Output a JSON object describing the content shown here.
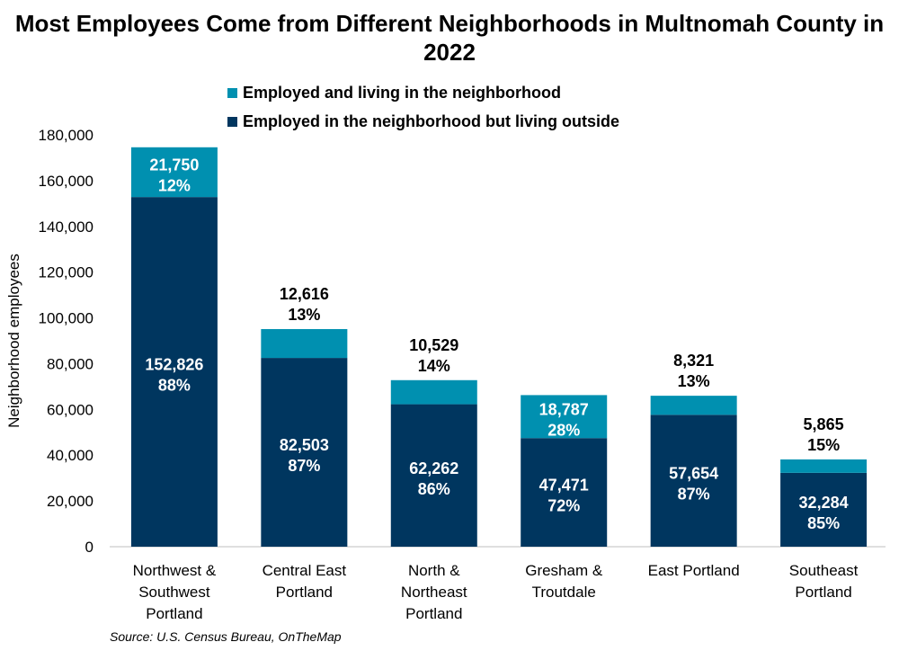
{
  "chart_data": {
    "type": "bar",
    "stacked": true,
    "title": "Most Employees Come from Different Neighborhoods in Multnomah County in 2022",
    "ylabel": "Neighborhood employees",
    "xlabel": "",
    "ylim": [
      0,
      180000
    ],
    "yticks": [
      0,
      20000,
      40000,
      60000,
      80000,
      100000,
      120000,
      140000,
      160000,
      180000
    ],
    "ytick_labels": [
      "0",
      "20,000",
      "40,000",
      "60,000",
      "80,000",
      "100,000",
      "120,000",
      "140,000",
      "160,000",
      "180,000"
    ],
    "grid": false,
    "legend_position": "top",
    "categories": [
      [
        "Northwest &",
        "Southwest",
        "Portland"
      ],
      [
        "Central East",
        "Portland"
      ],
      [
        "North &",
        "Northeast",
        "Portland"
      ],
      [
        "Gresham &",
        "Troutdale"
      ],
      [
        "East Portland"
      ],
      [
        "Southeast",
        "Portland"
      ]
    ],
    "series": [
      {
        "name": "Employed in the neighborhood but living outside",
        "color": "#00365f",
        "values": [
          152826,
          82503,
          62262,
          47471,
          57654,
          32284
        ],
        "value_labels": [
          "152,826",
          "82,503",
          "62,262",
          "47,471",
          "57,654",
          "32,284"
        ],
        "pct_labels": [
          "88%",
          "87%",
          "86%",
          "72%",
          "87%",
          "85%"
        ]
      },
      {
        "name": "Employed and living in the neighborhood",
        "color": "#0090b0",
        "values": [
          21750,
          12616,
          10529,
          18787,
          8321,
          5865
        ],
        "value_labels": [
          "21,750",
          "12,616",
          "10,529",
          "18,787",
          "8,321",
          "5,865"
        ],
        "pct_labels": [
          "12%",
          "13%",
          "14%",
          "28%",
          "13%",
          "15%"
        ]
      }
    ],
    "source": "Source: U.S. Census Bureau, OnTheMap"
  }
}
